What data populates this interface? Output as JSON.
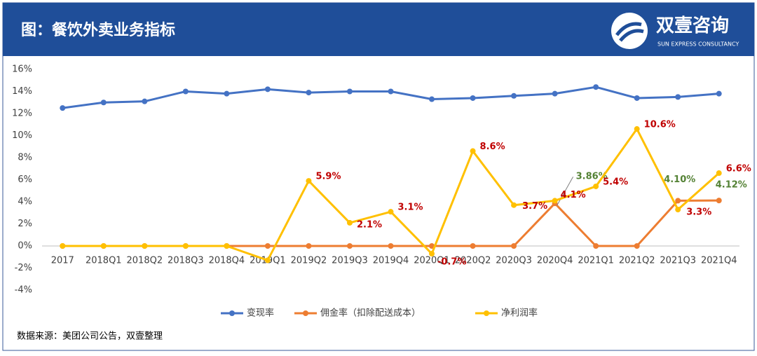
{
  "header": {
    "title": "图：餐饮外卖业务指标",
    "brand": "双壹咨询",
    "brand_sub": "SUN EXPRESS CONSULTANCY"
  },
  "chart_data": {
    "type": "line",
    "categories": [
      "2017",
      "2018Q1",
      "2018Q2",
      "2018Q3",
      "2018Q4",
      "2019Q1",
      "2019Q2",
      "2019Q3",
      "2019Q4",
      "2020Q1",
      "2020Q2",
      "2020Q3",
      "2020Q4",
      "2021Q1",
      "2021Q2",
      "2021Q3",
      "2021Q4"
    ],
    "series": [
      {
        "name": "变现率",
        "color": "#4472c4",
        "values": [
          12.5,
          13.0,
          13.1,
          14.0,
          13.8,
          14.2,
          13.9,
          14.0,
          14.0,
          13.3,
          13.4,
          13.6,
          13.8,
          14.4,
          13.4,
          13.5,
          13.8
        ]
      },
      {
        "name": "佣金率（扣除配送成本）",
        "color": "#ed7d31",
        "label_color": "#548235",
        "values": [
          0,
          0,
          0,
          0,
          0,
          0,
          0,
          0,
          0,
          0,
          0,
          0,
          3.86,
          0,
          0,
          4.1,
          4.12
        ],
        "value_labels": [
          null,
          null,
          null,
          null,
          null,
          null,
          null,
          null,
          null,
          null,
          null,
          null,
          "3.86%",
          null,
          null,
          "4.10%",
          "4.12%"
        ]
      },
      {
        "name": "净利润率",
        "color": "#ffc000",
        "label_color": "#c00000",
        "values": [
          0,
          0,
          0,
          0,
          0,
          -1.3,
          5.9,
          2.1,
          3.1,
          -0.7,
          8.6,
          3.7,
          4.1,
          5.4,
          10.6,
          3.3,
          6.6
        ],
        "value_labels": [
          null,
          null,
          null,
          null,
          null,
          null,
          "5.9%",
          "2.1%",
          "3.1%",
          "-0.7%",
          "8.6%",
          "3.7%",
          "4.1%",
          "5.4%",
          "10.6%",
          "3.3%",
          "6.6%"
        ]
      }
    ],
    "ylim": [
      -4,
      16
    ],
    "yticks": [
      {
        "value": -4,
        "label": "-4%"
      },
      {
        "value": -2,
        "label": "-2%"
      },
      {
        "value": 0,
        "label": "0%"
      },
      {
        "value": 2,
        "label": "2%"
      },
      {
        "value": 4,
        "label": "4%"
      },
      {
        "value": 6,
        "label": "6%"
      },
      {
        "value": 8,
        "label": "8%"
      },
      {
        "value": 10,
        "label": "10%"
      },
      {
        "value": 12,
        "label": "12%"
      },
      {
        "value": 14,
        "label": "14%"
      },
      {
        "value": 16,
        "label": "16%"
      }
    ],
    "grid": false,
    "legend": "bottom"
  },
  "source": "数据来源：美团公司公告，双壹整理"
}
